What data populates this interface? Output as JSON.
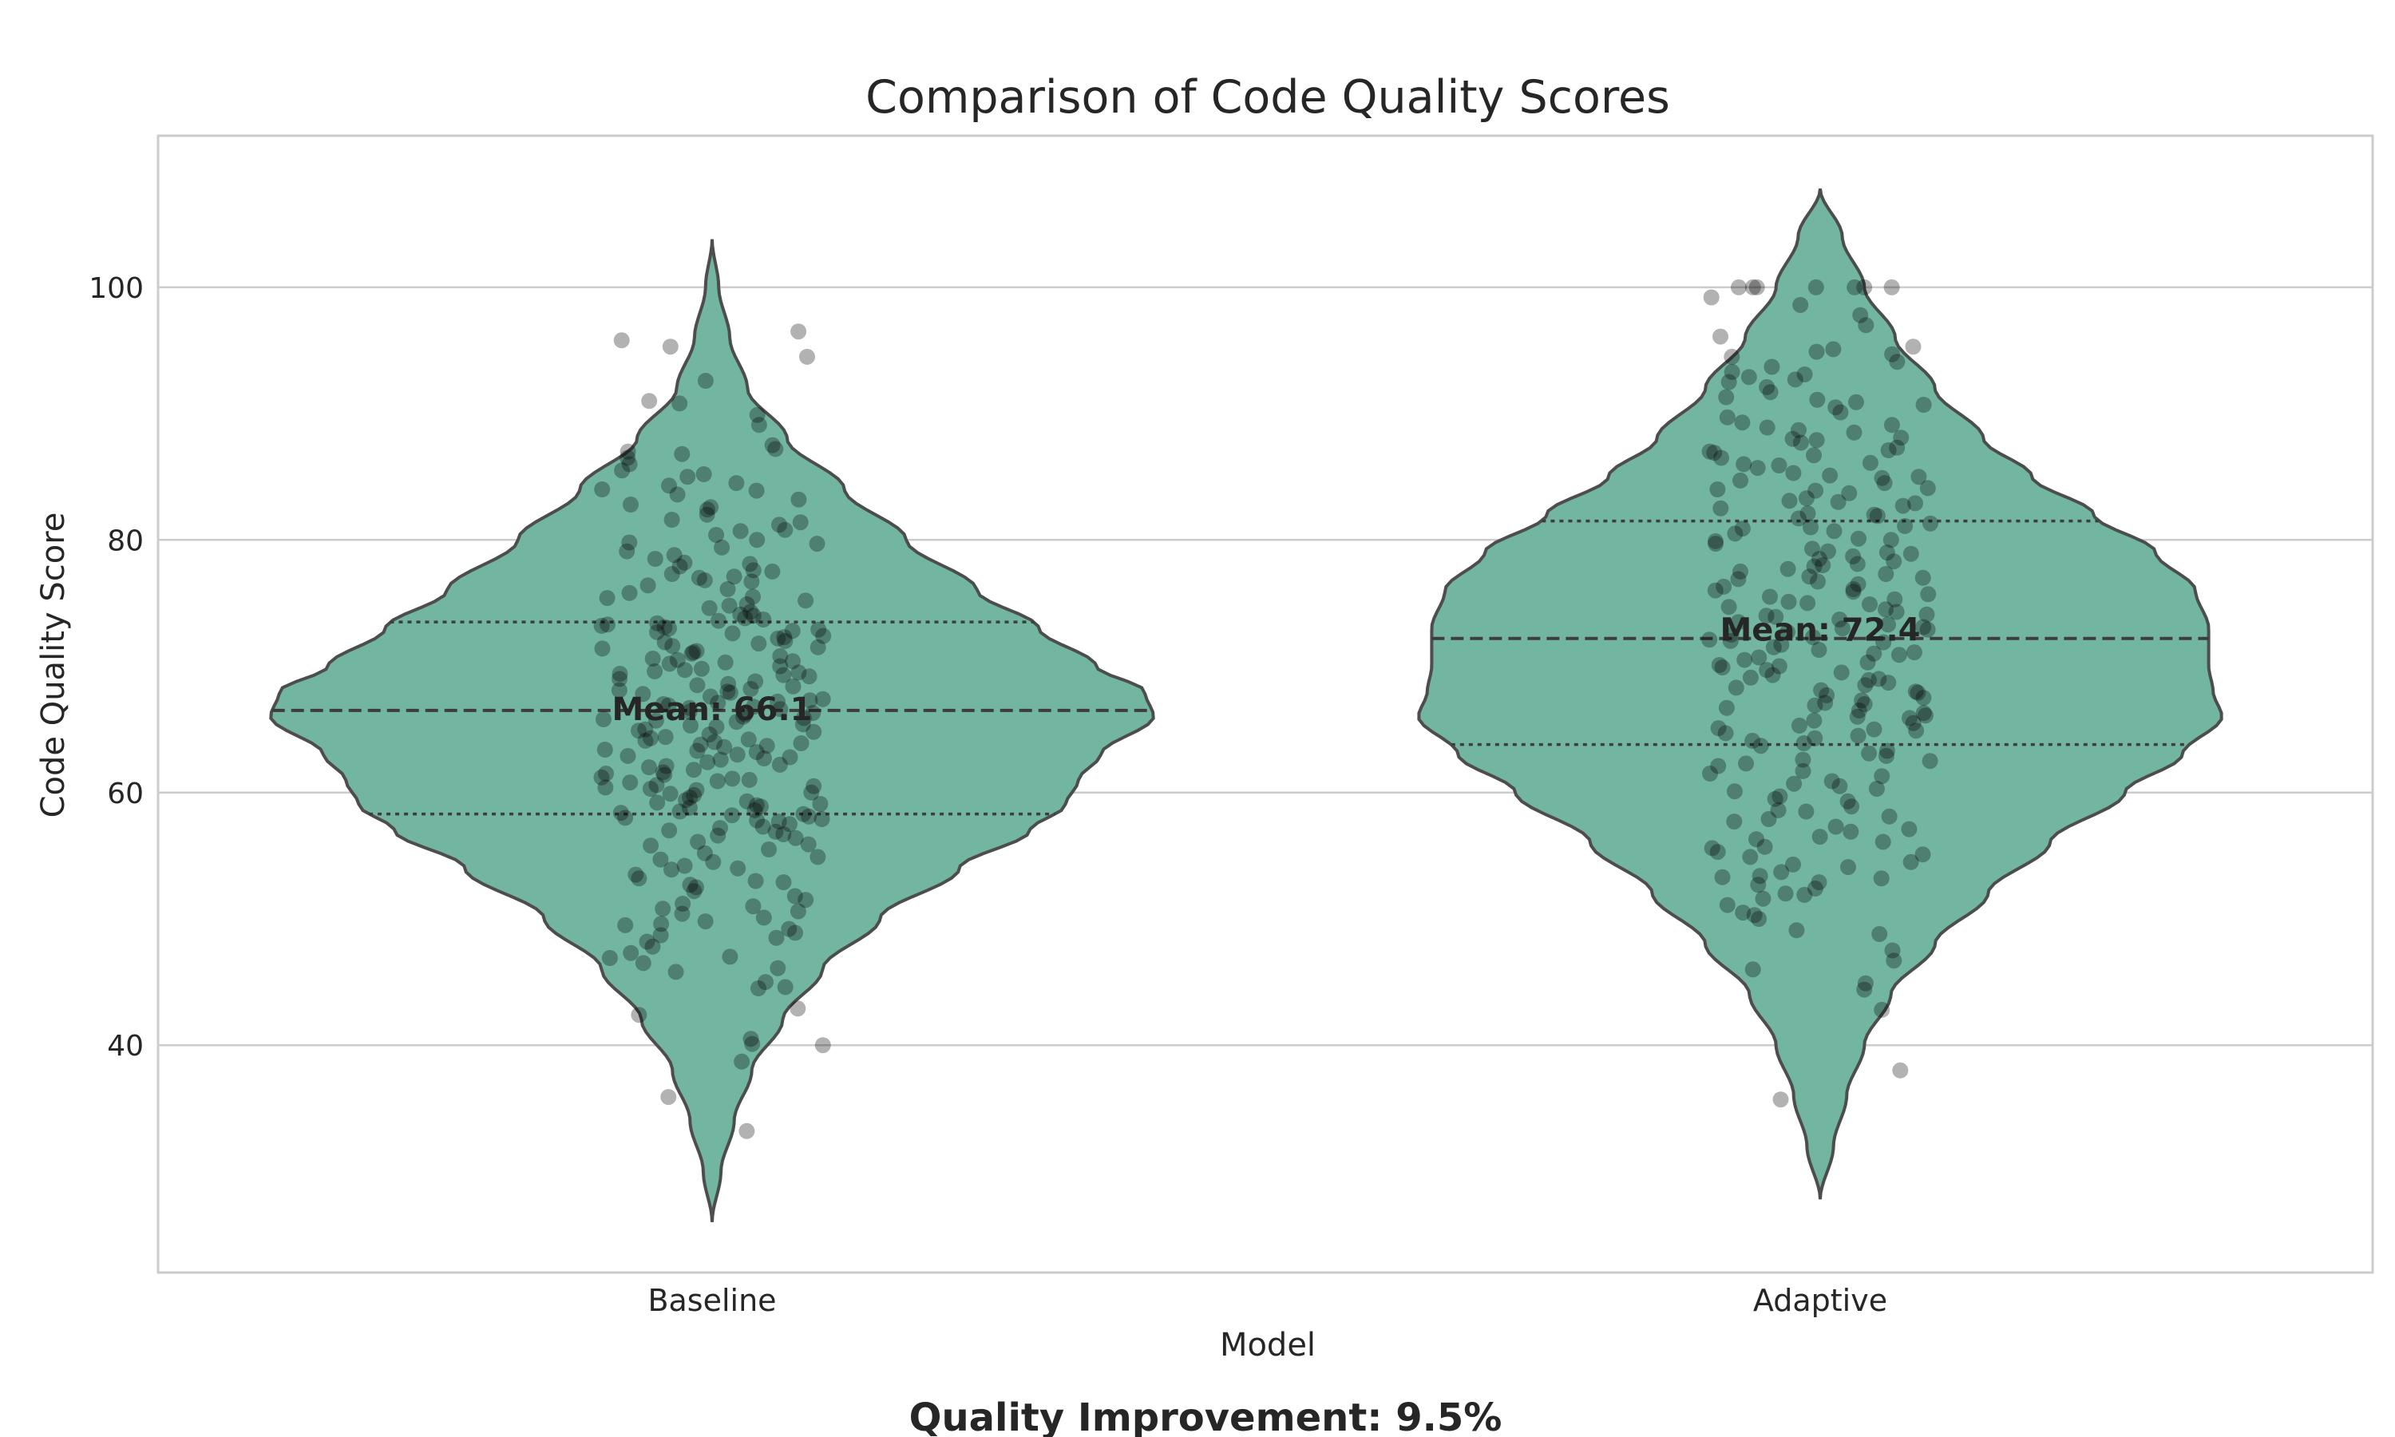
{
  "chart_data": {
    "type": "violin",
    "title": "Comparison of Code Quality Scores",
    "xlabel": "Model",
    "ylabel": "Code Quality Score",
    "ylim": [
      22,
      112
    ],
    "yticks": [
      40,
      60,
      80,
      100
    ],
    "grid": "horizontal",
    "categories": [
      "Baseline",
      "Adaptive"
    ],
    "colors": {
      "violin_fill": "#72b6a1",
      "violin_edge": "#4d4d4d",
      "points": "#000000",
      "grid": "#cccccc",
      "frame": "#cccccc"
    },
    "series": [
      {
        "category": "Baseline",
        "mean": 66.1,
        "mean_label": "Mean: 66.1",
        "median": 66.5,
        "q1": 58.3,
        "q3": 73.5,
        "range": [
          26,
          103.8
        ],
        "density_profile": [
          [
            26,
            0.0
          ],
          [
            30,
            0.02
          ],
          [
            34,
            0.05
          ],
          [
            38,
            0.09
          ],
          [
            42,
            0.16
          ],
          [
            46,
            0.25
          ],
          [
            50,
            0.38
          ],
          [
            54,
            0.56
          ],
          [
            57,
            0.72
          ],
          [
            59,
            0.8
          ],
          [
            61,
            0.83
          ],
          [
            63,
            0.88
          ],
          [
            66,
            1.0
          ],
          [
            68,
            0.98
          ],
          [
            70,
            0.87
          ],
          [
            73,
            0.74
          ],
          [
            76,
            0.6
          ],
          [
            80,
            0.44
          ],
          [
            84,
            0.3
          ],
          [
            88,
            0.17
          ],
          [
            92,
            0.08
          ],
          [
            96,
            0.04
          ],
          [
            100,
            0.015
          ],
          [
            103.8,
            0.0
          ]
        ],
        "points": [
          33.2,
          35.9,
          38.7,
          40.0,
          40.1,
          40.5,
          42.4,
          42.9,
          44.5,
          44.6,
          45.0,
          45.8,
          46.1,
          46.5,
          47.0,
          47.8,
          48.2,
          48.5,
          48.9,
          49.2,
          49.5,
          49.8,
          50.1,
          50.4,
          50.8,
          51.2,
          51.5,
          51.8,
          52.2,
          52.5,
          52.9,
          53.2,
          53.5,
          53.9,
          54.2,
          54.5,
          54.9,
          55.2,
          55.5,
          55.8,
          56.1,
          56.4,
          56.7,
          57.0,
          57.2,
          57.5,
          57.8,
          58.0,
          58.2,
          58.4,
          58.6,
          58.8,
          59.0,
          59.2,
          59.4,
          59.6,
          59.8,
          60.0,
          60.2,
          60.4,
          60.6,
          60.8,
          61.0,
          61.2,
          61.4,
          61.6,
          61.8,
          62.0,
          62.2,
          62.4,
          62.6,
          62.8,
          63.0,
          63.2,
          63.4,
          63.6,
          63.8,
          64.0,
          64.2,
          64.4,
          64.6,
          64.8,
          65.0,
          65.2,
          65.4,
          65.6,
          65.8,
          66.0,
          66.2,
          66.4,
          66.6,
          66.8,
          67.0,
          67.2,
          67.4,
          67.6,
          67.8,
          68.0,
          68.2,
          68.4,
          68.6,
          68.8,
          69.0,
          69.2,
          69.4,
          69.6,
          69.8,
          70.0,
          70.2,
          70.4,
          70.6,
          70.8,
          71.0,
          71.2,
          71.4,
          71.6,
          71.8,
          72.0,
          72.2,
          72.4,
          72.6,
          72.8,
          73.0,
          73.2,
          73.4,
          73.6,
          73.8,
          74.0,
          74.3,
          74.6,
          74.9,
          75.2,
          75.5,
          75.8,
          76.1,
          76.4,
          76.7,
          77.0,
          77.3,
          77.6,
          77.9,
          78.2,
          78.5,
          78.8,
          79.1,
          79.4,
          79.7,
          80.0,
          80.4,
          80.8,
          81.2,
          81.6,
          82.0,
          82.4,
          82.8,
          83.2,
          83.6,
          84.0,
          84.5,
          85.0,
          85.5,
          86.0,
          86.5,
          87.0,
          87.5,
          89.1,
          89.9,
          90.8,
          91.0,
          92.6,
          94.5,
          95.3,
          95.8,
          96.5,
          58.5,
          59.1,
          64.3,
          65.7,
          67.9,
          71.5,
          72.7,
          62.7,
          66.9,
          69.3,
          73.1,
          60.9,
          57.3,
          56.6,
          53.0,
          51.0,
          49.6,
          47.3,
          77.5,
          75.4,
          79.8,
          82.6,
          85.2,
          86.8,
          83.9,
          80.7,
          74.8,
          70.5,
          68.5,
          63.3,
          61.1,
          59.9,
          58.1,
          55.9,
          54.0,
          52.7,
          50.6,
          48.7,
          46.9,
          65.3,
          66.7,
          67.3,
          72.9,
          73.3,
          71.1,
          69.7,
          64.9,
          63.9,
          62.1,
          60.5,
          58.9,
          57.9,
          56.9,
          76.8,
          78.1,
          81.4,
          84.3,
          87.2,
          77.1,
          74.1,
          70.3,
          68.1,
          65.9,
          63.7,
          61.5,
          59.3,
          71.9,
          72.3,
          73.7,
          66.3,
          67.1,
          69.5,
          64.1,
          62.9,
          60.3,
          58.3,
          57.7,
          54.7
        ]
      },
      {
        "category": "Adaptive",
        "mean": 72.4,
        "mean_label": "Mean: 72.4",
        "median": 72.2,
        "q1": 63.8,
        "q3": 81.5,
        "range": [
          27.8,
          107.8
        ],
        "density_profile": [
          [
            27.8,
            0.0
          ],
          [
            32,
            0.03
          ],
          [
            36,
            0.06
          ],
          [
            40,
            0.1
          ],
          [
            44,
            0.16
          ],
          [
            48,
            0.26
          ],
          [
            52,
            0.38
          ],
          [
            56,
            0.52
          ],
          [
            60,
            0.69
          ],
          [
            63,
            0.82
          ],
          [
            66,
            0.91
          ],
          [
            68,
            0.89
          ],
          [
            70,
            0.88
          ],
          [
            73,
            0.88
          ],
          [
            76,
            0.85
          ],
          [
            79,
            0.76
          ],
          [
            82,
            0.62
          ],
          [
            85,
            0.48
          ],
          [
            88,
            0.37
          ],
          [
            92,
            0.26
          ],
          [
            96,
            0.17
          ],
          [
            100,
            0.1
          ],
          [
            104,
            0.05
          ],
          [
            107.8,
            0.0
          ]
        ],
        "points": [
          35.7,
          38.0,
          42.8,
          44.4,
          44.9,
          46.0,
          46.7,
          47.5,
          48.8,
          50.0,
          50.5,
          51.1,
          51.6,
          52.0,
          52.4,
          52.9,
          53.3,
          53.7,
          54.1,
          54.5,
          54.9,
          55.3,
          55.7,
          56.1,
          56.5,
          56.9,
          57.3,
          57.7,
          58.1,
          58.5,
          58.9,
          59.3,
          59.7,
          60.1,
          60.5,
          60.9,
          61.3,
          61.7,
          62.1,
          62.5,
          62.9,
          63.3,
          63.7,
          64.1,
          64.5,
          64.9,
          65.3,
          65.7,
          66.1,
          66.5,
          66.9,
          67.3,
          67.7,
          68.1,
          68.5,
          68.9,
          69.3,
          69.7,
          70.1,
          70.5,
          70.9,
          71.3,
          71.7,
          72.1,
          72.5,
          72.9,
          73.3,
          73.7,
          74.1,
          74.5,
          74.9,
          75.3,
          75.7,
          76.1,
          76.5,
          76.9,
          77.3,
          77.7,
          78.1,
          78.5,
          78.9,
          79.3,
          79.7,
          80.1,
          80.5,
          80.9,
          81.3,
          81.7,
          82.1,
          82.5,
          82.9,
          83.3,
          83.7,
          84.1,
          84.5,
          84.9,
          85.3,
          85.7,
          86.1,
          86.5,
          86.9,
          87.3,
          87.7,
          88.1,
          88.5,
          88.9,
          89.3,
          89.7,
          90.1,
          90.5,
          90.9,
          91.3,
          91.7,
          92.1,
          92.5,
          92.9,
          93.3,
          93.7,
          94.1,
          94.5,
          94.9,
          95.3,
          96.1,
          97.0,
          97.8,
          98.6,
          99.2,
          100.0,
          100.0,
          100.0,
          100.0,
          100.0,
          100.0,
          100.0,
          53.4,
          53.2,
          55.6,
          57.9,
          58.6,
          60.7,
          62.6,
          63.9,
          64.7,
          65.1,
          65.9,
          66.7,
          67.1,
          67.9,
          68.7,
          69.1,
          69.9,
          70.7,
          71.1,
          71.9,
          72.7,
          73.1,
          73.9,
          74.7,
          75.1,
          75.9,
          76.7,
          77.1,
          77.9,
          78.7,
          79.1,
          79.9,
          80.7,
          81.1,
          81.9,
          82.7,
          83.1,
          83.9,
          84.7,
          85.1,
          85.9,
          86.7,
          87.1,
          87.9,
          88.7,
          89.1,
          90.7,
          91.1,
          92.7,
          93.1,
          94.7,
          95.1,
          65.5,
          66.3,
          67.5,
          68.3,
          69.5,
          70.3,
          71.5,
          72.3,
          73.5,
          74.3,
          75.5,
          76.3,
          77.5,
          78.3,
          62.3,
          61.5,
          60.3,
          59.5,
          57.1,
          56.3,
          55.1,
          54.3,
          52.7,
          51.9,
          50.3,
          49.1,
          63.1,
          64.3,
          65.0,
          66.0,
          67.0,
          68.0,
          69.0,
          70.0,
          71.0,
          72.0,
          73.0,
          74.0,
          75.0,
          76.0,
          77.0,
          78.0,
          79.0,
          80.0,
          81.0,
          82.0,
          83.0,
          84.0,
          85.0,
          86.0,
          87.0,
          88.0
        ]
      }
    ],
    "footer": "Quality Improvement: 9.5%"
  }
}
